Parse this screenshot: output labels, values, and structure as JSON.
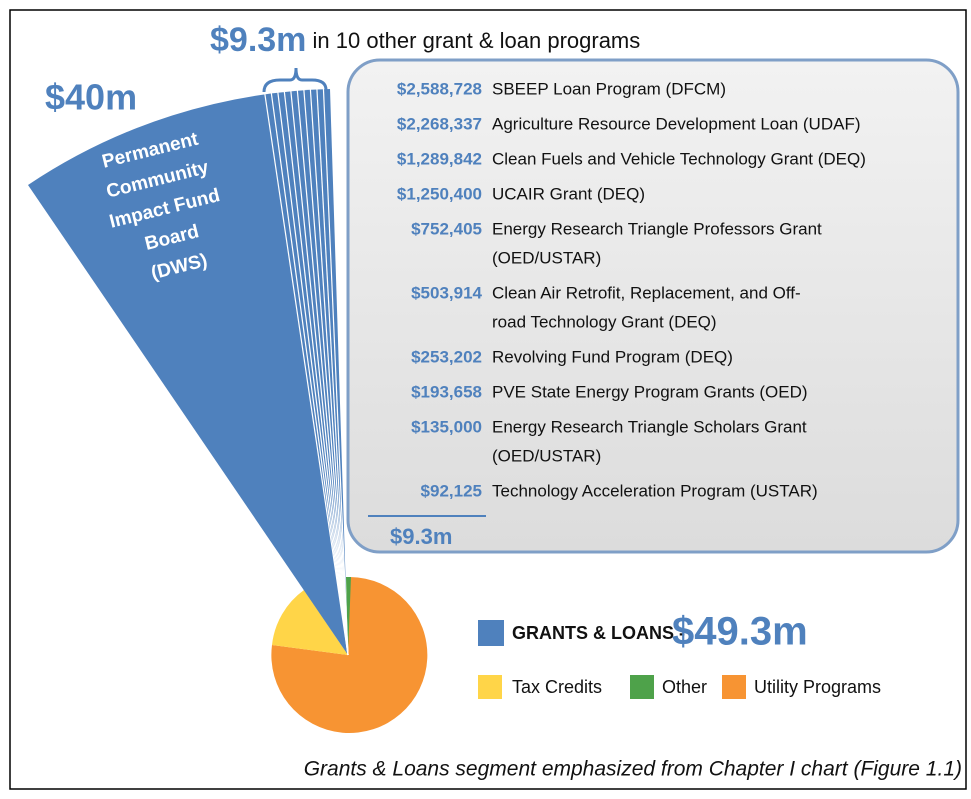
{
  "header": {
    "amount": "$9.3m",
    "text": " in 10 other grant & loan programs"
  },
  "main_amount": "$40m",
  "wedge_label": [
    "Permanent",
    "Community",
    "Impact Fund",
    "Board",
    "(DWS)"
  ],
  "programs": [
    {
      "amount": "$2,588,728",
      "name": [
        "SBEEP Loan Program (DFCM)"
      ]
    },
    {
      "amount": "$2,268,337",
      "name": [
        "Agriculture Resource Development Loan (UDAF)"
      ]
    },
    {
      "amount": "$1,289,842",
      "name": [
        "Clean Fuels and Vehicle Technology Grant (DEQ)"
      ]
    },
    {
      "amount": "$1,250,400",
      "name": [
        "UCAIR Grant (DEQ)"
      ]
    },
    {
      "amount": "$752,405",
      "name": [
        "Energy Research Triangle Professors Grant",
        "(OED/USTAR)"
      ]
    },
    {
      "amount": "$503,914",
      "name": [
        "Clean Air Retrofit, Replacement, and Off-",
        "road Technology Grant (DEQ)"
      ]
    },
    {
      "amount": "$253,202",
      "name": [
        "Revolving Fund Program (DEQ)"
      ]
    },
    {
      "amount": "$193,658",
      "name": [
        "PVE State Energy Program Grants (OED)"
      ]
    },
    {
      "amount": "$135,000",
      "name": [
        "Energy Research Triangle Scholars Grant",
        "(OED/USTAR)"
      ]
    },
    {
      "amount": "$92,125",
      "name": [
        "Technology Acceleration Program (USTAR)"
      ]
    }
  ],
  "total": "$9.3m",
  "legend": {
    "main": {
      "label": "GRANTS & LOANS -",
      "amount": "$49.3m"
    },
    "items": [
      "Tax Credits",
      "Other",
      "Utility Programs"
    ]
  },
  "caption": "Grants & Loans segment emphasized from Chapter I chart (Figure 1.1)"
}
